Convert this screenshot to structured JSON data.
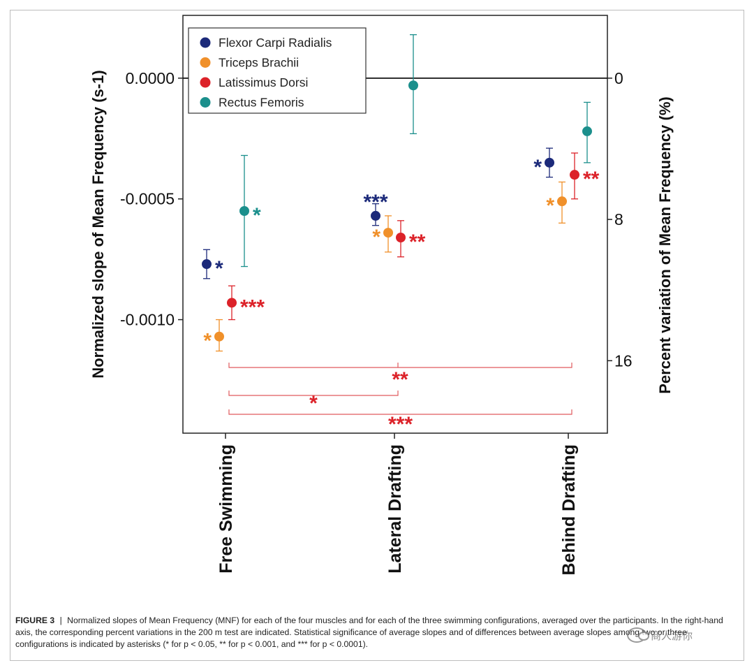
{
  "chart_data": {
    "type": "scatter",
    "ylabel": "Normalized slope of Mean Frequency (s-1)",
    "ylabel_right": "Percent variation of Mean Frequency (%)",
    "ylim": [
      -0.00147,
      0.00026
    ],
    "left_ticks": [
      {
        "value": 0.0,
        "label": "0.0000"
      },
      {
        "value": -0.0005,
        "label": "-0.0005"
      },
      {
        "value": -0.001,
        "label": "-0.0010"
      }
    ],
    "right_ticks": [
      {
        "value": 0.0,
        "label": "0"
      },
      {
        "value": -0.000585,
        "label": "8"
      },
      {
        "value": -0.00117,
        "label": "16"
      }
    ],
    "categories": [
      "Free Swimming",
      "Lateral Drafting",
      "Behind Drafting"
    ],
    "series": [
      {
        "name": "Flexor Carpi Radialis",
        "color": "#1c2a7a",
        "offset": -0.3,
        "values": [
          -0.00077,
          -0.00057,
          -0.00035
        ],
        "err_low": [
          -0.00083,
          -0.00061,
          -0.00041
        ],
        "err_high": [
          -0.00071,
          -0.00052,
          -0.00029
        ],
        "sig": [
          "*",
          "***",
          "*"
        ],
        "sig_pos": [
          "right",
          "above",
          "left"
        ]
      },
      {
        "name": "Triceps Brachii",
        "color": "#f0902a",
        "offset": -0.1,
        "values": [
          -0.00107,
          -0.00064,
          -0.00051
        ],
        "err_low": [
          -0.00113,
          -0.00072,
          -0.0006
        ],
        "err_high": [
          -0.001,
          -0.00057,
          -0.00043
        ],
        "sig": [
          "*",
          "*",
          "*"
        ],
        "sig_pos": [
          "left",
          "left",
          "left"
        ]
      },
      {
        "name": "Latissimus Dorsi",
        "color": "#dc2229",
        "offset": 0.1,
        "values": [
          -0.00093,
          -0.00066,
          -0.0004
        ],
        "err_low": [
          -0.001,
          -0.00074,
          -0.0005
        ],
        "err_high": [
          -0.00086,
          -0.00059,
          -0.00031
        ],
        "sig": [
          "***",
          "**",
          "**"
        ],
        "sig_pos": [
          "right",
          "right",
          "right"
        ]
      },
      {
        "name": "Rectus Femoris",
        "color": "#1b8f8c",
        "offset": 0.3,
        "values": [
          -0.00055,
          -3e-05,
          -0.00022
        ],
        "err_low": [
          -0.00078,
          -0.00023,
          -0.00035
        ],
        "err_high": [
          -0.00032,
          0.00018,
          -0.0001
        ],
        "sig": [
          "*",
          "",
          ""
        ],
        "sig_pos": [
          "right",
          "",
          ""
        ]
      }
    ],
    "comparisons": [
      {
        "from": 0,
        "to": 2,
        "label": "**"
      },
      {
        "from": 0,
        "to": 1,
        "label": "*"
      },
      {
        "from": 0,
        "to": 2,
        "label": "***"
      }
    ],
    "legend": "top-left",
    "grid": false
  },
  "caption": {
    "figure_label": "FIGURE 3",
    "separator": "|",
    "text": "Normalized slopes of Mean Frequency (MNF) for each of the four muscles and for each of the three swimming configurations, averaged over the participants. In the right-hand axis, the corresponding percent variations in the 200 m test are indicated. Statistical significance of average slopes and of differences between average slopes among two or three configurations is indicated by asterisks (* for p < 0.05, ** for p < 0.001, and *** for p < 0.0001)."
  },
  "watermark": {
    "text": "商人游你"
  }
}
